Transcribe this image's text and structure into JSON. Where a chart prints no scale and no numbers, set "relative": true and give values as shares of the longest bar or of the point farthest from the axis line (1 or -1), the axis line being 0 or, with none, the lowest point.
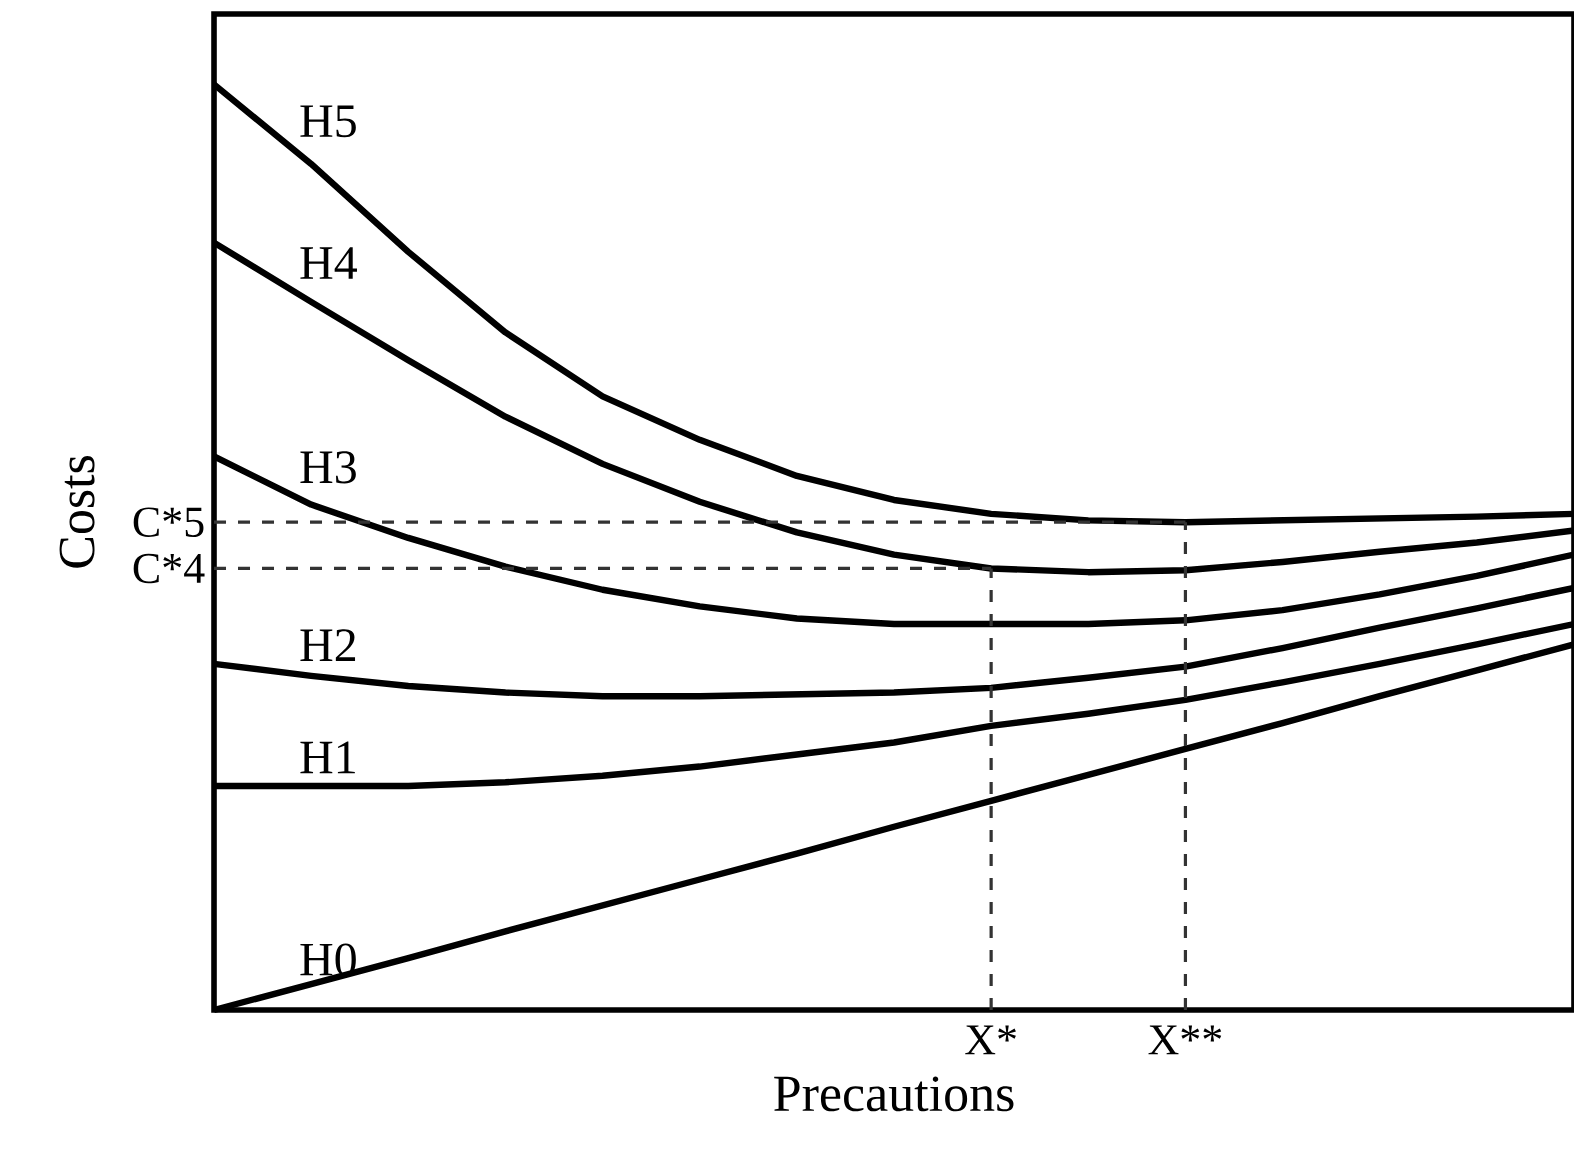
{
  "chart_data": {
    "type": "line",
    "xlabel": "Precautions",
    "ylabel": "Costs",
    "relative": true,
    "tick_labels": "x",
    "categories": [
      null,
      null,
      null,
      null,
      null,
      null,
      null,
      null,
      "X*",
      null,
      "X**",
      null,
      null,
      null,
      null
    ],
    "series": [
      {
        "name": "H5",
        "color": "#000000",
        "values": [
          1.0,
          0.914,
          0.819,
          0.732,
          0.663,
          0.616,
          0.577,
          0.551,
          0.536,
          0.529,
          0.527,
          0.529,
          0.531,
          0.533,
          0.536
        ]
      },
      {
        "name": "H4",
        "color": "#000000",
        "values": [
          0.829,
          0.765,
          0.702,
          0.641,
          0.59,
          0.549,
          0.516,
          0.492,
          0.477,
          0.473,
          0.475,
          0.484,
          0.495,
          0.505,
          0.518
        ]
      },
      {
        "name": "H3",
        "color": "#000000",
        "values": [
          0.598,
          0.546,
          0.51,
          0.479,
          0.454,
          0.436,
          0.423,
          0.417,
          0.417,
          0.417,
          0.421,
          0.432,
          0.449,
          0.469,
          0.492
        ]
      },
      {
        "name": "H2",
        "color": "#000000",
        "values": [
          0.374,
          0.361,
          0.35,
          0.343,
          0.339,
          0.339,
          0.341,
          0.343,
          0.348,
          0.359,
          0.371,
          0.391,
          0.413,
          0.434,
          0.456
        ]
      },
      {
        "name": "H1",
        "color": "#000000",
        "values": [
          0.242,
          0.242,
          0.242,
          0.246,
          0.253,
          0.263,
          0.276,
          0.289,
          0.307,
          0.32,
          0.335,
          0.354,
          0.374,
          0.395,
          0.417
        ]
      },
      {
        "name": "H0",
        "color": "#000000",
        "values": [
          0,
          0.028,
          0.056,
          0.085,
          0.113,
          0.141,
          0.169,
          0.198,
          0.226,
          0.254,
          0.282,
          0.31,
          0.339,
          0.367,
          0.395
        ]
      }
    ],
    "ref_lines": [
      {
        "axis": "y",
        "value": 0.527,
        "label": "C*5",
        "color": "#333333",
        "line_style": "dashed"
      },
      {
        "axis": "y",
        "value": 0.477,
        "label": "C*4",
        "color": "#333333",
        "line_style": "dashed"
      },
      {
        "axis": "x",
        "value": "X*",
        "color": "#333333",
        "line_style": "dashed"
      },
      {
        "axis": "x",
        "value": "X**",
        "color": "#333333",
        "line_style": "dashed"
      }
    ]
  }
}
